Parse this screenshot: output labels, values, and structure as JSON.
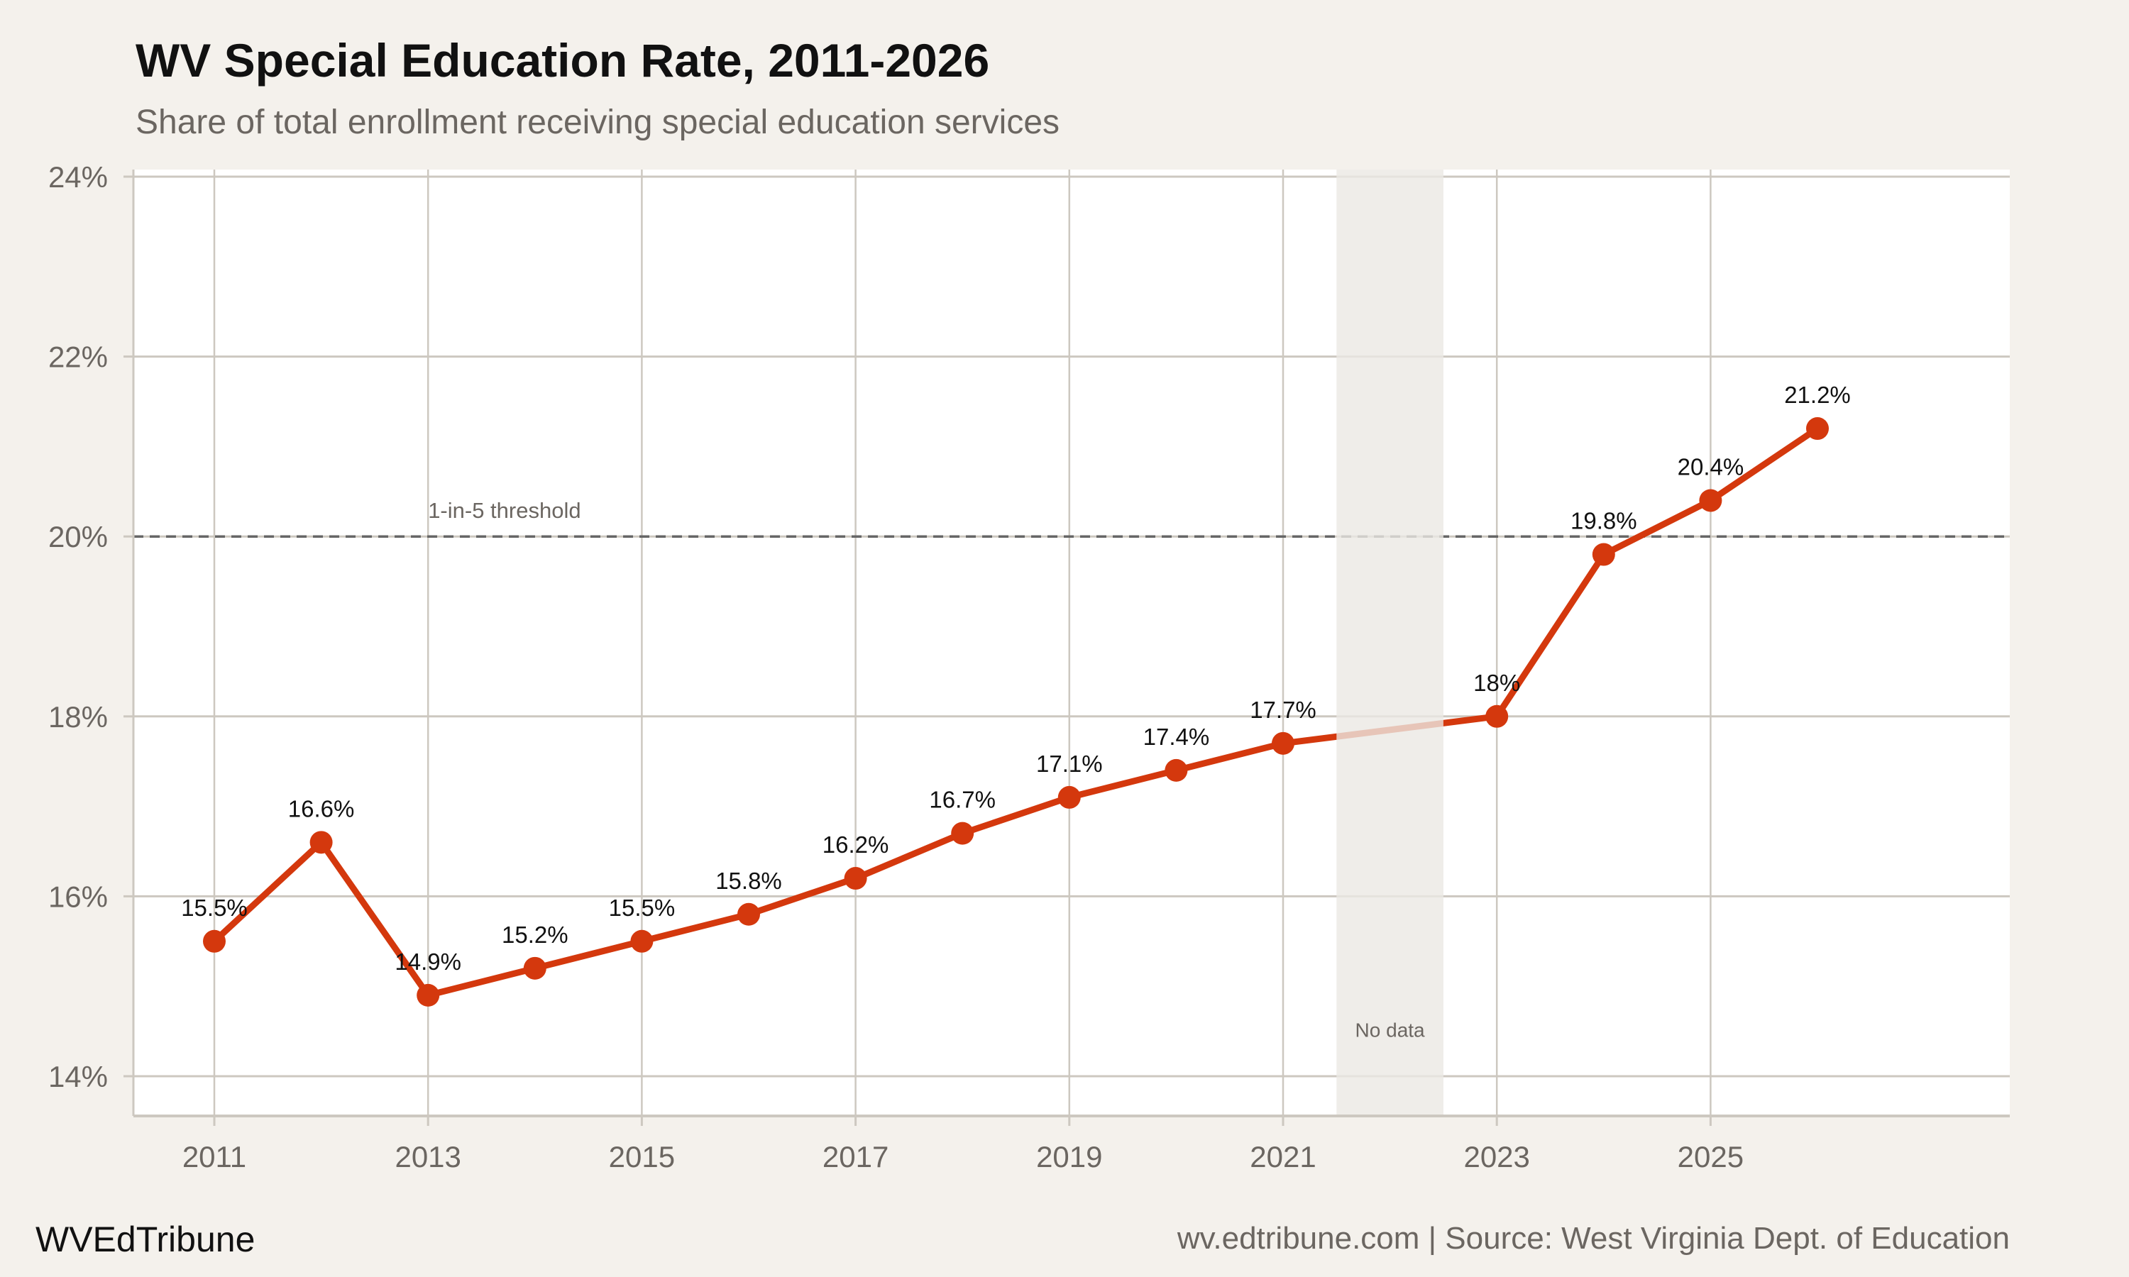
{
  "chart_data": {
    "type": "line",
    "title": "WV Special Education Rate, 2011-2026",
    "subtitle": "Share of total enrollment receiving special education services",
    "xlabel": "",
    "ylabel": "",
    "x": [
      2011,
      2012,
      2013,
      2014,
      2015,
      2016,
      2017,
      2018,
      2019,
      2020,
      2021,
      2023,
      2024,
      2025,
      2026
    ],
    "values": [
      15.5,
      16.6,
      14.9,
      15.2,
      15.5,
      15.8,
      16.2,
      16.7,
      17.1,
      17.4,
      17.7,
      18.0,
      19.8,
      20.4,
      21.2
    ],
    "data_labels": [
      "15.5%",
      "16.6%",
      "14.9%",
      "15.2%",
      "15.5%",
      "15.8%",
      "16.2%",
      "16.7%",
      "17.1%",
      "17.4%",
      "17.7%",
      "18%",
      "19.8%",
      "20.4%",
      "21.2%"
    ],
    "ylim": [
      14,
      24
    ],
    "xlim": [
      2011,
      2026
    ],
    "y_ticks": [
      14,
      16,
      18,
      20,
      22,
      24
    ],
    "y_tick_labels": [
      "14%",
      "16%",
      "18%",
      "20%",
      "22%",
      "24%"
    ],
    "x_ticks": [
      2011,
      2013,
      2015,
      2017,
      2019,
      2021,
      2023,
      2025
    ],
    "x_tick_labels": [
      "2011",
      "2013",
      "2015",
      "2017",
      "2019",
      "2021",
      "2023",
      "2025"
    ],
    "grid": true,
    "reference_line": {
      "y": 20,
      "label": "1-in-5 threshold",
      "style": "dashed"
    },
    "shaded_region": {
      "x": [
        2021.5,
        2022.5
      ],
      "label": "No data"
    },
    "colors": {
      "line": "#d4380d",
      "background": "#f4f1ec",
      "panel": "#ffffff",
      "grid": "#cdc8c0",
      "shade": "#ebe9e4"
    }
  },
  "footer": {
    "brand": "WVEdTribune",
    "source": "wv.edtribune.com | Source: West Virginia Dept. of Education"
  }
}
